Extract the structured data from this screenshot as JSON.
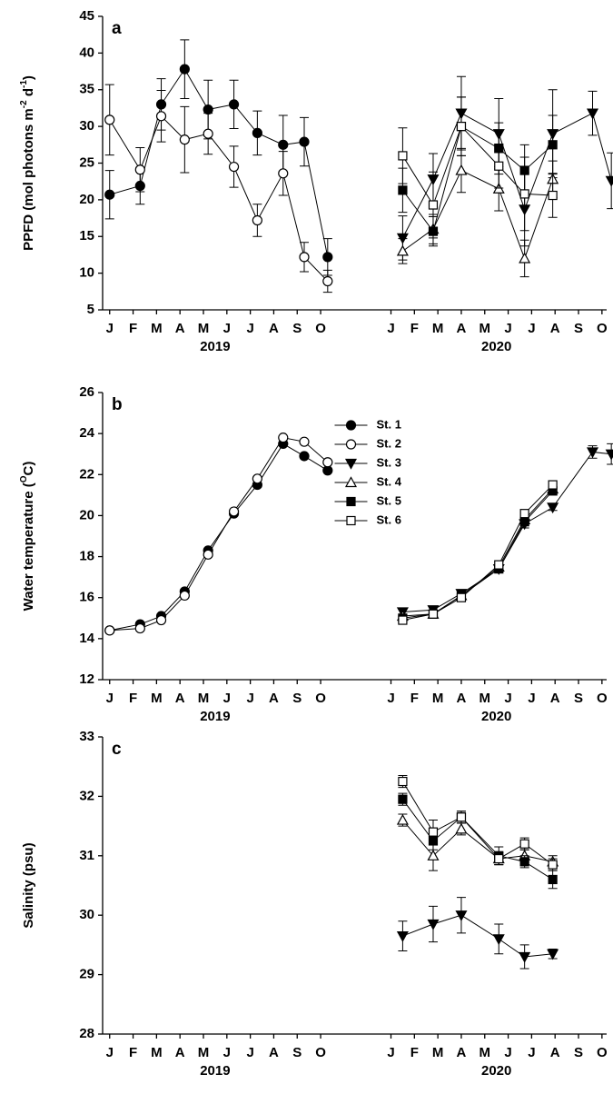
{
  "chart_data": [
    {
      "type": "line",
      "title": "a",
      "ylabel": [
        "PPFD (mol photons m",
        "-2",
        " d",
        "-1",
        ")"
      ],
      "xlim": [
        -0.3,
        21.2
      ],
      "xticks": [
        {
          "value": 0,
          "label": "J"
        },
        {
          "value": 1,
          "label": "F"
        },
        {
          "value": 2,
          "label": "M"
        },
        {
          "value": 3,
          "label": "A"
        },
        {
          "value": 4,
          "label": "M"
        },
        {
          "value": 5,
          "label": "J"
        },
        {
          "value": 6,
          "label": "J"
        },
        {
          "value": 7,
          "label": "A"
        },
        {
          "value": 8,
          "label": "S"
        },
        {
          "value": 9,
          "label": "O"
        },
        {
          "value": 12,
          "label": "J"
        },
        {
          "value": 13,
          "label": "F"
        },
        {
          "value": 14,
          "label": "M"
        },
        {
          "value": 15,
          "label": "A"
        },
        {
          "value": 16,
          "label": "M"
        },
        {
          "value": 17,
          "label": "J"
        },
        {
          "value": 18,
          "label": "J"
        },
        {
          "value": 19,
          "label": "A"
        },
        {
          "value": 20,
          "label": "S"
        },
        {
          "value": 21,
          "label": "O"
        }
      ],
      "group_labels": [
        {
          "value": 4.5,
          "label": "2019"
        },
        {
          "value": 16.5,
          "label": "2020"
        }
      ],
      "ylim": [
        5,
        45
      ],
      "yticks": [
        5,
        10,
        15,
        20,
        25,
        30,
        35,
        40,
        45
      ],
      "series": [
        {
          "marker": "circle",
          "color": "#000000",
          "fill": "#000000",
          "x": [
            0,
            1.3,
            2.2,
            3.2,
            4.2,
            5.3,
            6.3,
            7.4,
            8.3,
            9.3
          ],
          "values": [
            20.7,
            21.9,
            33,
            37.8,
            32.3,
            33,
            29.1,
            27.5,
            27.9,
            12.2
          ],
          "errors": [
            3.3,
            2.5,
            3.5,
            4,
            4,
            3.3,
            3,
            4,
            3.3,
            2.5
          ]
        },
        {
          "marker": "circle",
          "color": "#000000",
          "fill": "#ffffff",
          "x": [
            0,
            1.3,
            2.2,
            3.2,
            4.2,
            5.3,
            6.3,
            7.4,
            8.3,
            9.3
          ],
          "values": [
            30.9,
            24.1,
            31.4,
            28.2,
            29,
            24.5,
            17.2,
            23.6,
            12.2,
            8.9
          ],
          "errors": [
            4.8,
            3,
            3.5,
            4.5,
            2.8,
            2.8,
            2.2,
            3,
            2,
            1.5
          ]
        },
        {
          "marker": "triangle-down",
          "color": "#000000",
          "fill": "#000000",
          "x": [
            12.5,
            13.8,
            15.0,
            16.6,
            17.7,
            18.9,
            20.6,
            21.4
          ],
          "values": [
            14.8,
            22.8,
            31.8,
            29,
            18.7,
            29,
            31.8,
            22.6
          ],
          "errors": [
            3,
            3.5,
            5,
            4.8,
            5,
            6,
            3,
            3.8
          ]
        },
        {
          "marker": "triangle-up",
          "color": "#000000",
          "fill": "#ffffff",
          "x": [
            12.5,
            13.8,
            15.0,
            16.6,
            17.7,
            18.9
          ],
          "values": [
            13,
            16,
            24,
            21.5,
            12,
            22.8
          ],
          "errors": [
            1.7,
            2,
            3,
            3,
            2.5,
            2.5
          ]
        },
        {
          "marker": "square",
          "color": "#000000",
          "fill": "#000000",
          "x": [
            12.5,
            13.8,
            15.0,
            16.6,
            17.7,
            18.9
          ],
          "values": [
            21.3,
            15.7,
            30,
            27,
            24,
            27.5
          ],
          "errors": [
            3,
            2,
            4,
            3.5,
            3.5,
            4
          ]
        },
        {
          "marker": "square",
          "color": "#000000",
          "fill": "#ffffff",
          "x": [
            12.5,
            13.8,
            15.0,
            16.6,
            17.7,
            18.9
          ],
          "values": [
            26,
            19.3,
            30,
            24.6,
            20.8,
            20.6
          ],
          "errors": [
            3.8,
            4.5,
            4,
            3,
            5,
            3
          ]
        }
      ]
    },
    {
      "type": "line",
      "title": "b",
      "ylabel": [
        "Water temperature (",
        "O",
        "C)"
      ],
      "xlim": [
        -0.3,
        21.2
      ],
      "xticks": [
        {
          "value": 0,
          "label": "J"
        },
        {
          "value": 1,
          "label": "F"
        },
        {
          "value": 2,
          "label": "M"
        },
        {
          "value": 3,
          "label": "A"
        },
        {
          "value": 4,
          "label": "M"
        },
        {
          "value": 5,
          "label": "J"
        },
        {
          "value": 6,
          "label": "J"
        },
        {
          "value": 7,
          "label": "A"
        },
        {
          "value": 8,
          "label": "S"
        },
        {
          "value": 9,
          "label": "O"
        },
        {
          "value": 12,
          "label": "J"
        },
        {
          "value": 13,
          "label": "F"
        },
        {
          "value": 14,
          "label": "M"
        },
        {
          "value": 15,
          "label": "A"
        },
        {
          "value": 16,
          "label": "M"
        },
        {
          "value": 17,
          "label": "J"
        },
        {
          "value": 18,
          "label": "J"
        },
        {
          "value": 19,
          "label": "A"
        },
        {
          "value": 20,
          "label": "S"
        },
        {
          "value": 21,
          "label": "O"
        }
      ],
      "group_labels": [
        {
          "value": 4.5,
          "label": "2019"
        },
        {
          "value": 16.5,
          "label": "2020"
        }
      ],
      "ylim": [
        12,
        26
      ],
      "yticks": [
        12,
        14,
        16,
        18,
        20,
        22,
        24,
        26
      ],
      "legend": "upper center",
      "series": [
        {
          "name": "St. 1",
          "marker": "circle",
          "color": "#000000",
          "fill": "#000000",
          "x": [
            0,
            1.3,
            2.2,
            3.2,
            4.2,
            5.3,
            6.3,
            7.4,
            8.3,
            9.3
          ],
          "values": [
            14.4,
            14.7,
            15.1,
            16.3,
            18.3,
            20.1,
            21.5,
            23.5,
            22.9,
            22.2
          ]
        },
        {
          "name": "St. 2",
          "marker": "circle",
          "color": "#000000",
          "fill": "#ffffff",
          "x": [
            0,
            1.3,
            2.2,
            3.2,
            4.2,
            5.3,
            6.3,
            7.4,
            8.3,
            9.3
          ],
          "values": [
            14.4,
            14.5,
            14.9,
            16.1,
            18.1,
            20.2,
            21.8,
            23.8,
            23.6,
            22.6
          ]
        },
        {
          "name": "St. 3",
          "marker": "triangle-down",
          "color": "#000000",
          "fill": "#000000",
          "x": [
            12.5,
            13.8,
            15.0,
            16.6,
            17.7,
            18.9,
            20.6,
            21.4
          ],
          "values": [
            15.3,
            15.4,
            16.2,
            17.4,
            19.6,
            20.4,
            23.1,
            23.0
          ],
          "errors": [
            0.15,
            0.15,
            0.15,
            0.15,
            0.2,
            0.15,
            0.3,
            0.5
          ]
        },
        {
          "name": "St. 4",
          "marker": "triangle-up",
          "color": "#000000",
          "fill": "#ffffff",
          "x": [
            12.5,
            13.8,
            15.0,
            16.6,
            17.7,
            18.9
          ],
          "values": [
            15.1,
            15.2,
            16.1,
            17.5,
            19.8,
            21.3
          ]
        },
        {
          "name": "St. 5",
          "marker": "square",
          "color": "#000000",
          "fill": "#000000",
          "x": [
            12.5,
            13.8,
            15.0,
            16.6,
            17.7,
            18.9
          ],
          "values": [
            15.0,
            15.2,
            16.1,
            17.4,
            19.7,
            21.2
          ]
        },
        {
          "name": "St. 6",
          "marker": "square",
          "color": "#000000",
          "fill": "#ffffff",
          "x": [
            12.5,
            13.8,
            15.0,
            16.6,
            17.7,
            18.9
          ],
          "values": [
            14.9,
            15.2,
            16.0,
            17.6,
            20.1,
            21.5
          ]
        }
      ]
    },
    {
      "type": "line",
      "title": "c",
      "ylabel": [
        "Salinity (psu)"
      ],
      "xlim": [
        -0.3,
        21.2
      ],
      "xticks": [
        {
          "value": 0,
          "label": "J"
        },
        {
          "value": 1,
          "label": "F"
        },
        {
          "value": 2,
          "label": "M"
        },
        {
          "value": 3,
          "label": "A"
        },
        {
          "value": 4,
          "label": "M"
        },
        {
          "value": 5,
          "label": "J"
        },
        {
          "value": 6,
          "label": "J"
        },
        {
          "value": 7,
          "label": "A"
        },
        {
          "value": 8,
          "label": "S"
        },
        {
          "value": 9,
          "label": "O"
        },
        {
          "value": 12,
          "label": "J"
        },
        {
          "value": 13,
          "label": "F"
        },
        {
          "value": 14,
          "label": "M"
        },
        {
          "value": 15,
          "label": "A"
        },
        {
          "value": 16,
          "label": "M"
        },
        {
          "value": 17,
          "label": "J"
        },
        {
          "value": 18,
          "label": "J"
        },
        {
          "value": 19,
          "label": "A"
        },
        {
          "value": 20,
          "label": "S"
        },
        {
          "value": 21,
          "label": "O"
        }
      ],
      "group_labels": [
        {
          "value": 4.5,
          "label": "2019"
        },
        {
          "value": 16.5,
          "label": "2020"
        }
      ],
      "ylim": [
        28,
        33
      ],
      "yticks": [
        28,
        29,
        30,
        31,
        32,
        33
      ],
      "series": [
        {
          "marker": "triangle-down",
          "color": "#000000",
          "fill": "#000000",
          "x": [
            12.5,
            13.8,
            15.0,
            16.6,
            17.7,
            18.9
          ],
          "values": [
            29.65,
            29.85,
            30.0,
            29.6,
            29.3,
            29.35
          ],
          "errors": [
            0.25,
            0.3,
            0.3,
            0.25,
            0.2,
            0.08
          ]
        },
        {
          "marker": "triangle-up",
          "color": "#000000",
          "fill": "#ffffff",
          "x": [
            12.5,
            13.8,
            15.0,
            16.6,
            17.7,
            18.9
          ],
          "values": [
            31.6,
            31.0,
            31.45,
            30.95,
            31.0,
            30.9
          ],
          "errors": [
            0.1,
            0.25,
            0.1,
            0.1,
            0.1,
            0.1
          ]
        },
        {
          "marker": "square",
          "color": "#000000",
          "fill": "#000000",
          "x": [
            12.5,
            13.8,
            15.0,
            16.6,
            17.7,
            18.9
          ],
          "values": [
            31.95,
            31.25,
            31.65,
            31.0,
            30.9,
            30.6
          ],
          "errors": [
            0.1,
            0.15,
            0.1,
            0.15,
            0.1,
            0.15
          ]
        },
        {
          "marker": "square",
          "color": "#000000",
          "fill": "#ffffff",
          "x": [
            12.5,
            13.8,
            15.0,
            16.6,
            17.7,
            18.9
          ],
          "values": [
            32.25,
            31.4,
            31.65,
            30.95,
            31.2,
            30.85
          ],
          "errors": [
            0.1,
            0.2,
            0.1,
            0.1,
            0.1,
            0.1
          ]
        }
      ]
    }
  ]
}
